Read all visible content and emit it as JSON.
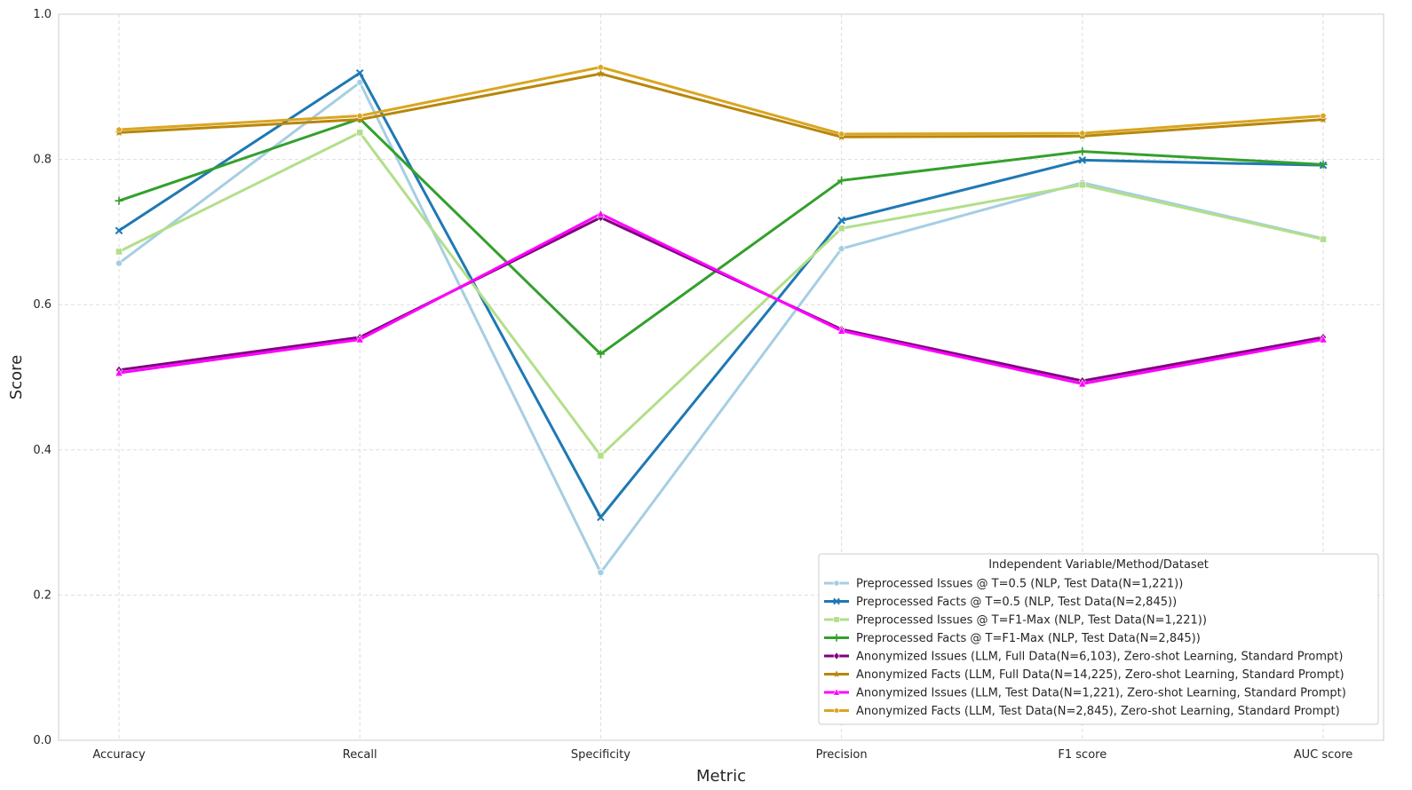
{
  "chart_data": {
    "type": "line",
    "title": "",
    "xlabel": "Metric",
    "ylabel": "Score",
    "ylim": [
      0,
      1
    ],
    "yticks": [
      "0.0",
      "0.2",
      "0.4",
      "0.6",
      "0.8",
      "1.0"
    ],
    "grid": true,
    "legend_position": "bottom-right",
    "legend_title": "Independent Variable/Method/Dataset",
    "categories": [
      "Accuracy",
      "Recall",
      "Specificity",
      "Precision",
      "F1 score",
      "AUC score"
    ],
    "series": [
      {
        "name": "Preprocessed Issues @ T=0.5 (NLP, Test Data(N=1,221))",
        "color": "#a6cee3",
        "marker": "circle",
        "values": [
          0.657,
          0.906,
          0.231,
          0.677,
          0.768,
          0.691
        ]
      },
      {
        "name": "Preprocessed Facts @ T=0.5 (NLP, Test Data(N=2,845))",
        "color": "#1f78b4",
        "marker": "x",
        "values": [
          0.702,
          0.919,
          0.307,
          0.716,
          0.799,
          0.792
        ]
      },
      {
        "name": "Preprocessed Issues @ T=F1-Max (NLP, Test Data(N=1,221))",
        "color": "#b2df8a",
        "marker": "square",
        "values": [
          0.673,
          0.837,
          0.392,
          0.705,
          0.765,
          0.69
        ]
      },
      {
        "name": "Preprocessed Facts @ T=F1-Max (NLP, Test Data(N=2,845))",
        "color": "#33a02c",
        "marker": "plus",
        "values": [
          0.743,
          0.856,
          0.532,
          0.771,
          0.811,
          0.793
        ]
      },
      {
        "name": "Anonymized Issues (LLM, Full Data(N=6,103), Zero-shot Learning, Standard Prompt)",
        "color": "#800080",
        "marker": "diamond",
        "values": [
          0.51,
          0.555,
          0.72,
          0.566,
          0.495,
          0.555
        ]
      },
      {
        "name": "Anonymized Facts (LLM, Full Data(N=14,225), Zero-shot Learning, Standard Prompt)",
        "color": "#b8860b",
        "marker": "star",
        "values": [
          0.837,
          0.855,
          0.918,
          0.831,
          0.832,
          0.855
        ]
      },
      {
        "name": "Anonymized Issues (LLM, Test Data(N=1,221), Zero-shot Learning, Standard Prompt)",
        "color": "#ff00ff",
        "marker": "triangle",
        "values": [
          0.506,
          0.552,
          0.725,
          0.564,
          0.491,
          0.552
        ]
      },
      {
        "name": "Anonymized Facts (LLM, Test Data(N=2,845), Zero-shot Learning, Standard Prompt)",
        "color": "#daa520",
        "marker": "pentagon",
        "values": [
          0.841,
          0.86,
          0.927,
          0.835,
          0.836,
          0.86
        ]
      }
    ]
  }
}
